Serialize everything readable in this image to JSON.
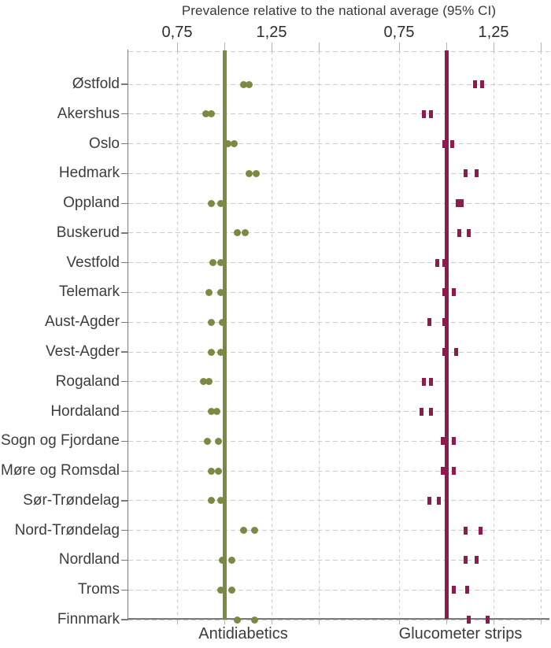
{
  "title": "Prevalence relative to the national average (95% CI)",
  "colors": {
    "antidiabetics": "#7A8A43",
    "glucometer_strips": "#8D1B4D",
    "gridline": "#cccccc",
    "tick": "#b3b3b3",
    "axis": "#7a7a7a",
    "label_text": "#3c3c3c",
    "tick_text": "#2d2d2d",
    "background": "#ffffff"
  },
  "x_axis": {
    "tick_labels": [
      "0,75",
      "1,25"
    ],
    "tick_values": [
      0.75,
      1.25
    ],
    "decimal_style": "comma"
  },
  "chart_data": {
    "type": "scatter",
    "subtype": "dot-plot of 95% CI endpoints, two facets sharing county axis",
    "title": "Prevalence relative to the national average (95% CI)",
    "reference_line": 1.0,
    "x_ticks_labeled": [
      0.75,
      1.25
    ],
    "x_gridlines": [
      0.75,
      1.0,
      1.25,
      1.5
    ],
    "x_range": [
      0.5,
      1.55
    ],
    "grid": "dashed",
    "categories": [
      "Østfold",
      "Akershus",
      "Oslo",
      "Hedmark",
      "Oppland",
      "Buskerud",
      "Vestfold",
      "Telemark",
      "Aust-Agder",
      "Vest-Agder",
      "Rogaland",
      "Hordaland",
      "Sogn og Fjordane",
      "Møre og Romsdal",
      "Sør-Trøndelag",
      "Nord-Trøndelag",
      "Nordland",
      "Troms",
      "Finnmark"
    ],
    "series": [
      {
        "name": "Antidiabetics",
        "marker": "dot",
        "color": "#7A8A43",
        "ci": [
          [
            1.1,
            1.13
          ],
          [
            0.9,
            0.93
          ],
          [
            1.02,
            1.05
          ],
          [
            1.13,
            1.17
          ],
          [
            0.93,
            0.98
          ],
          [
            1.07,
            1.11
          ],
          [
            0.94,
            0.98
          ],
          [
            0.92,
            0.98
          ],
          [
            0.93,
            0.99
          ],
          [
            0.93,
            0.98
          ],
          [
            0.89,
            0.92
          ],
          [
            0.93,
            0.96
          ],
          [
            0.91,
            0.97
          ],
          [
            0.93,
            0.97
          ],
          [
            0.93,
            0.98
          ],
          [
            1.1,
            1.16
          ],
          [
            0.99,
            1.04
          ],
          [
            0.98,
            1.04
          ],
          [
            1.07,
            1.16
          ]
        ]
      },
      {
        "name": "Glucometer strips",
        "marker": "dash",
        "color": "#8D1B4D",
        "ci": [
          [
            1.15,
            1.19
          ],
          [
            0.88,
            0.92
          ],
          [
            0.99,
            1.03
          ],
          [
            1.1,
            1.16
          ],
          [
            1.06,
            1.08
          ],
          [
            1.07,
            1.12
          ],
          [
            0.95,
            0.99
          ],
          [
            0.99,
            1.04
          ],
          [
            0.91,
            0.99
          ],
          [
            0.99,
            1.05
          ],
          [
            0.88,
            0.92
          ],
          [
            0.87,
            0.92
          ],
          [
            0.98,
            1.04
          ],
          [
            0.98,
            1.04
          ],
          [
            0.91,
            0.96
          ],
          [
            1.1,
            1.18
          ],
          [
            1.1,
            1.16
          ],
          [
            1.04,
            1.11
          ],
          [
            1.12,
            1.22
          ]
        ]
      }
    ]
  }
}
